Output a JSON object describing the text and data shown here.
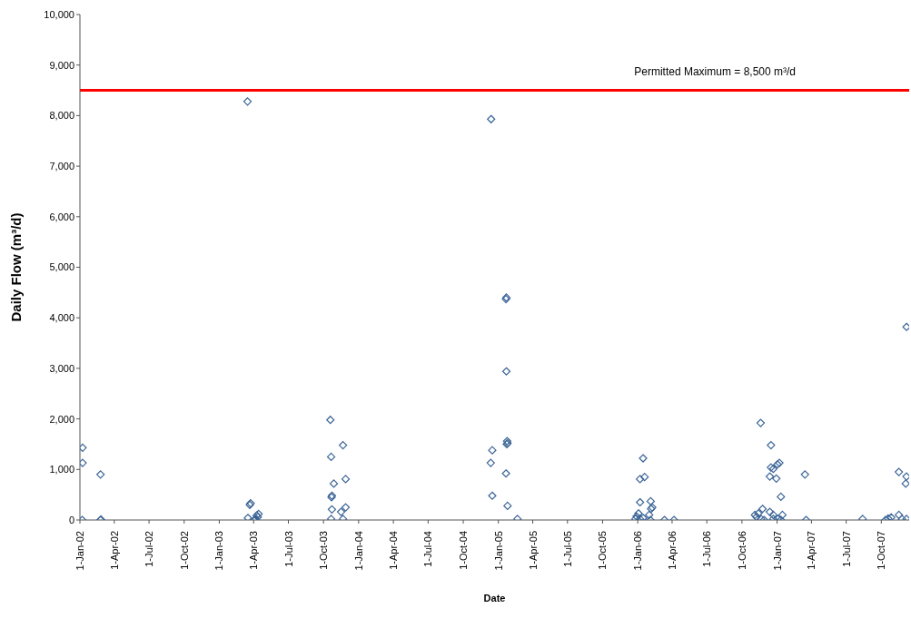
{
  "chart_data": {
    "type": "scatter",
    "xlabel": "Date",
    "ylabel": "Daily Flow (m³/d)",
    "x": [
      "2002-01-08",
      "2002-01-08",
      "2002-01-07",
      "2002-02-24",
      "2002-02-24",
      "2002-02-25",
      "2003-03-16",
      "2003-03-22",
      "2003-03-24",
      "2003-03-17",
      "2003-04-05",
      "2003-04-09",
      "2003-04-14",
      "2003-04-05",
      "2003-04-12",
      "2003-10-19",
      "2003-10-21",
      "2003-11-21",
      "2003-10-28",
      "2003-11-28",
      "2003-10-23",
      "2003-10-22",
      "2003-10-23",
      "2003-11-28",
      "2003-11-16",
      "2003-10-21",
      "2003-11-21",
      "2004-12-13",
      "2005-01-22",
      "2005-01-21",
      "2005-01-22",
      "2005-01-25",
      "2005-01-24",
      "2005-01-23",
      "2004-12-16",
      "2004-12-12",
      "2005-01-21",
      "2004-12-16",
      "2005-01-25",
      "2005-02-20",
      "2006-01-15",
      "2006-01-07",
      "2006-01-19",
      "2006-01-07",
      "2006-02-04",
      "2006-02-08",
      "2006-02-05",
      "2006-01-03",
      "2005-12-29",
      "2005-12-26",
      "2006-01-07",
      "2006-01-15",
      "2006-01-31",
      "2006-02-03",
      "2006-03-12",
      "2006-04-06",
      "2006-11-19",
      "2006-12-16",
      "2007-01-07",
      "2007-01-02",
      "2006-12-16",
      "2006-12-22",
      "2006-12-13",
      "2006-12-30",
      "2007-03-15",
      "2007-01-11",
      "2006-11-24",
      "2006-12-13",
      "2006-11-13",
      "2006-11-04",
      "2006-12-22",
      "2007-01-15",
      "2006-11-08",
      "2006-11-20",
      "2006-12-22",
      "2007-01-03",
      "2006-11-28",
      "2007-01-11",
      "2007-03-18",
      "2007-08-13",
      "2007-12-06",
      "2007-11-16",
      "2007-12-06",
      "2007-12-04",
      "2007-10-12",
      "2007-10-19",
      "2007-10-27",
      "2007-11-16",
      "2007-11-24",
      "2007-12-06"
    ],
    "values": [
      1430,
      1130,
      0,
      900,
      0,
      10,
      8280,
      300,
      330,
      40,
      20,
      90,
      120,
      0,
      60,
      1980,
      1250,
      1480,
      720,
      810,
      480,
      450,
      210,
      250,
      160,
      20,
      20,
      7930,
      4400,
      4370,
      2940,
      1520,
      1560,
      1500,
      1380,
      1130,
      920,
      480,
      280,
      20,
      1220,
      810,
      850,
      350,
      370,
      250,
      220,
      130,
      70,
      20,
      20,
      40,
      100,
      0,
      0,
      0,
      1920,
      1480,
      1130,
      1100,
      1040,
      1010,
      860,
      820,
      900,
      460,
      220,
      160,
      130,
      100,
      100,
      100,
      60,
      20,
      20,
      20,
      0,
      0,
      0,
      20,
      3820,
      950,
      860,
      720,
      0,
      30,
      50,
      100,
      20,
      20
    ],
    "color": "#3a6496",
    "marker": "diamond",
    "legend": false,
    "grid": false,
    "xlim": [
      "2002-01-01",
      "2007-12-13"
    ],
    "xticks": [
      {
        "value": "2002-01-01",
        "label": "1-Jan-02"
      },
      {
        "value": "2002-04-01",
        "label": "1-Apr-02"
      },
      {
        "value": "2002-07-01",
        "label": "1-Jul-02"
      },
      {
        "value": "2002-10-01",
        "label": "1-Oct-02"
      },
      {
        "value": "2003-01-01",
        "label": "1-Jan-03"
      },
      {
        "value": "2003-04-01",
        "label": "1-Apr-03"
      },
      {
        "value": "2003-07-01",
        "label": "1-Jul-03"
      },
      {
        "value": "2003-10-01",
        "label": "1-Oct-03"
      },
      {
        "value": "2004-01-01",
        "label": "1-Jan-04"
      },
      {
        "value": "2004-04-01",
        "label": "1-Apr-04"
      },
      {
        "value": "2004-07-01",
        "label": "1-Jul-04"
      },
      {
        "value": "2004-10-01",
        "label": "1-Oct-04"
      },
      {
        "value": "2005-01-01",
        "label": "1-Jan-05"
      },
      {
        "value": "2005-04-01",
        "label": "1-Apr-05"
      },
      {
        "value": "2005-07-01",
        "label": "1-Jul-05"
      },
      {
        "value": "2005-10-01",
        "label": "1-Oct-05"
      },
      {
        "value": "2006-01-01",
        "label": "1-Jan-06"
      },
      {
        "value": "2006-04-01",
        "label": "1-Apr-06"
      },
      {
        "value": "2006-07-01",
        "label": "1-Jul-06"
      },
      {
        "value": "2006-10-01",
        "label": "1-Oct-06"
      },
      {
        "value": "2007-01-01",
        "label": "1-Jan-07"
      },
      {
        "value": "2007-04-01",
        "label": "1-Apr-07"
      },
      {
        "value": "2007-07-01",
        "label": "1-Jul-07"
      },
      {
        "value": "2007-10-01",
        "label": "1-Oct-07"
      }
    ],
    "ylim": [
      0,
      10000
    ],
    "yticks": [
      {
        "value": 0,
        "label": "0"
      },
      {
        "value": 1000,
        "label": "1,000"
      },
      {
        "value": 2000,
        "label": "2,000"
      },
      {
        "value": 3000,
        "label": "3,000"
      },
      {
        "value": 4000,
        "label": "4,000"
      },
      {
        "value": 5000,
        "label": "5,000"
      },
      {
        "value": 6000,
        "label": "6,000"
      },
      {
        "value": 7000,
        "label": "7,000"
      },
      {
        "value": 8000,
        "label": "8,000"
      },
      {
        "value": 9000,
        "label": "9,000"
      },
      {
        "value": 10000,
        "label": "10,000"
      }
    ],
    "ref_lines": [
      {
        "axis": "y",
        "value": 8500,
        "label": "Permitted Maximum = 8,500 m³/d",
        "color": "#ff0000",
        "line_style": "solid"
      }
    ]
  }
}
